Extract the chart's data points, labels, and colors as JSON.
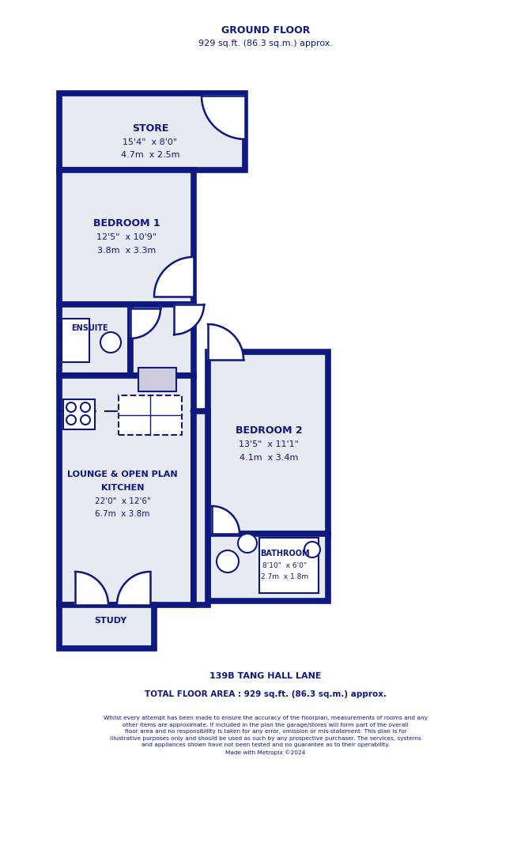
{
  "title_floor": "GROUND FLOOR",
  "title_area": "929 sq.ft. (86.3 sq.m.) approx.",
  "address": "139B TANG HALL LANE",
  "total_area": "TOTAL FLOOR AREA : 929 sq.ft. (86.3 sq.m.) approx.",
  "disclaimer": "Whilst every attempt has been made to ensure the accuracy of the floorplan, measurements of rooms and any\nother items are approximate. If included in the plan the garage/stores will form part of the overall\nfloor area and no responsibility is taken for any error, omission or mis-statement. This plan is for\nillustrative purposes only and should be used as such by any prospective purchaser. The services, systems\nand appliances shown have not been tested and no guarantee as to their operability.\nMade with Metropix ©2024",
  "wall_color": "#0d1880",
  "room_fill": "#e8eaf2",
  "bg_color": "#ffffff",
  "text_color": "#0d1880"
}
